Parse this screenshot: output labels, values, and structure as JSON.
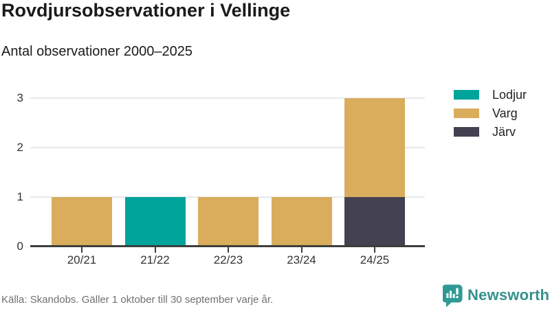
{
  "header": {
    "title": "Rovdjursobservationer i Vellinge",
    "subtitle": "Antal observationer 2000–2025"
  },
  "chart_data": {
    "type": "bar",
    "stacked": true,
    "categories": [
      "20/21",
      "21/22",
      "22/23",
      "23/24",
      "24/25"
    ],
    "series": [
      {
        "name": "Lodjur",
        "color": "#00a49a",
        "values": [
          0,
          1,
          0,
          0,
          0
        ]
      },
      {
        "name": "Varg",
        "color": "#d9ad5c",
        "values": [
          1,
          0,
          1,
          1,
          2
        ]
      },
      {
        "name": "Järv",
        "color": "#444150",
        "values": [
          0,
          0,
          0,
          0,
          1
        ]
      }
    ],
    "stack_order_bottom_up": [
      "Järv",
      "Varg",
      "Lodjur"
    ],
    "totals": [
      1,
      1,
      1,
      1,
      3
    ],
    "title": "Rovdjursobservationer i Vellinge",
    "subtitle": "Antal observationer 2000–2025",
    "xlabel": "",
    "ylabel": "",
    "ylim": [
      0,
      3
    ],
    "yticks": [
      0,
      1,
      2,
      3
    ],
    "ytick_labels": [
      "0",
      "1",
      "2",
      "3"
    ],
    "grid": "horizontal",
    "legend_position": "right"
  },
  "colors": {
    "lodjur": "#00a49a",
    "varg": "#d9ad5c",
    "jarv": "#444150",
    "axis": "#3d3d3d",
    "gridline": "#e9e9e9",
    "text_dark": "#1a1a1a",
    "text_muted": "#707070",
    "brand_teal": "#35918c"
  },
  "icons": {
    "brand": "newsworthy-speech-bubble-bar-chart-icon"
  },
  "footer": {
    "source": "Källa: Skandobs. Gäller 1 oktober till 30 september varje år.",
    "brand": "Newsworthy"
  }
}
